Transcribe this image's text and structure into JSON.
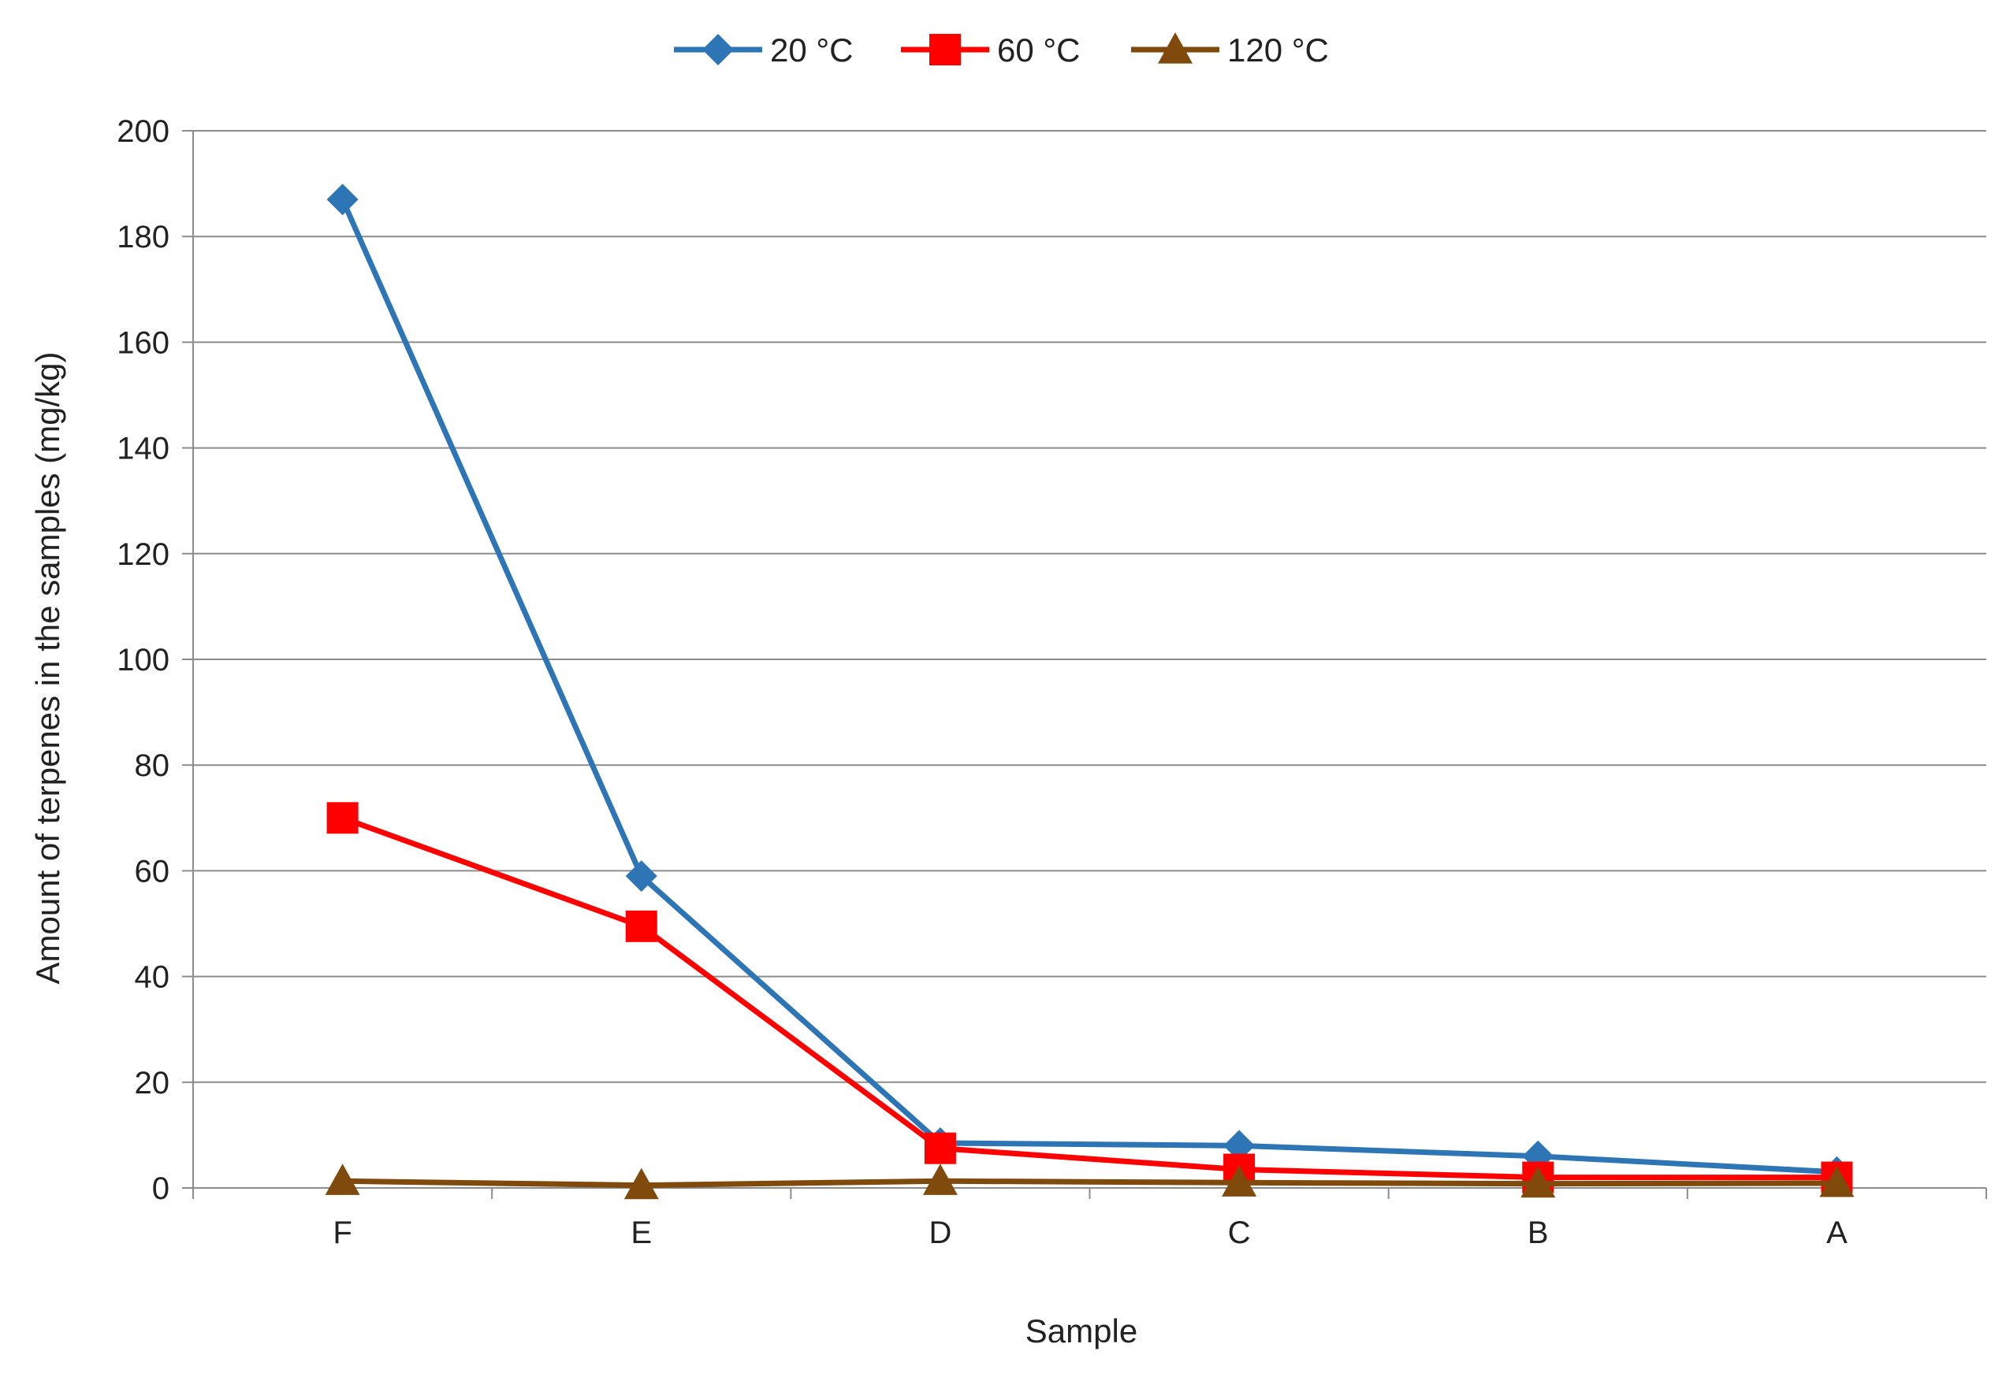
{
  "chart_data": {
    "type": "line",
    "categories": [
      "F",
      "E",
      "D",
      "C",
      "B",
      "A"
    ],
    "series": [
      {
        "name": "20 °C",
        "values": [
          187,
          59,
          8.5,
          8,
          6,
          3
        ],
        "color": "#2e75b6",
        "marker": "diamond"
      },
      {
        "name": "60 °C",
        "values": [
          70,
          49.5,
          7.5,
          3.5,
          2,
          2
        ],
        "color": "#ff0000",
        "marker": "square"
      },
      {
        "name": "120 °C",
        "values": [
          1.3,
          0.5,
          1.3,
          1,
          0.8,
          0.9
        ],
        "color": "#7f4a0c",
        "marker": "triangle"
      }
    ],
    "title": "",
    "xlabel": "Sample",
    "ylabel": "Amount of terpenes in the samples (mg/kg)",
    "ylim": [
      0,
      200
    ],
    "yticks": [
      0,
      20,
      40,
      60,
      80,
      100,
      120,
      140,
      160,
      180,
      200
    ],
    "grid": "horizontal",
    "legend": "top"
  }
}
